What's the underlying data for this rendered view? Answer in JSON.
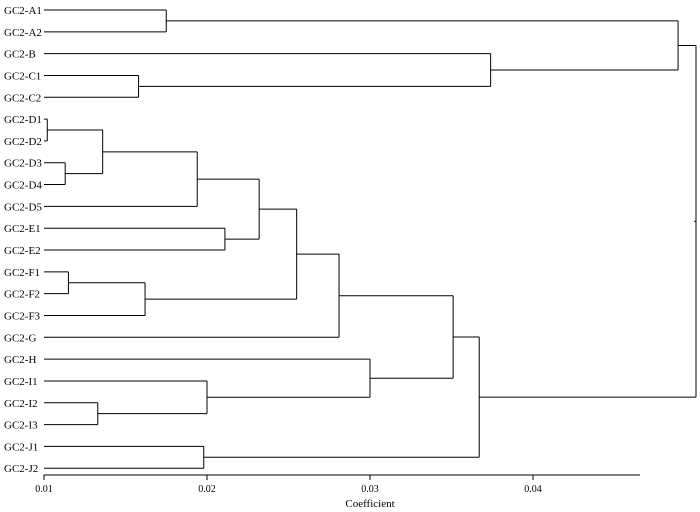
{
  "chart_data": {
    "type": "dendrogram",
    "xlabel": "Coefficient",
    "xlim": [
      0.01,
      0.0475
    ],
    "ticks": [
      0.01,
      0.02,
      0.03,
      0.04
    ],
    "tick_labels": [
      "0.01",
      "0.02",
      "0.03",
      "0.04"
    ],
    "leaves": [
      "GC2-A1",
      "GC2-A2",
      "GC2-B",
      "GC2-C1",
      "GC2-C2",
      "GC2-D1",
      "GC2-D2",
      "GC2-D3",
      "GC2-D4",
      "GC2-D5",
      "GC2-E1",
      "GC2-E2",
      "GC2-F1",
      "GC2-F2",
      "GC2-F3",
      "GC2-G",
      "GC2-H",
      "GC2-I1",
      "GC2-I2",
      "GC2-I3",
      "GC2-J1",
      "GC2-J2"
    ],
    "merges": [
      {
        "id": "n1",
        "children": [
          "GC2-A1",
          "GC2-A2"
        ],
        "height": 0.0175
      },
      {
        "id": "n2",
        "children": [
          "GC2-C1",
          "GC2-C2"
        ],
        "height": 0.0158
      },
      {
        "id": "n3",
        "children": [
          "GC2-B",
          "n2"
        ],
        "height": 0.0374
      },
      {
        "id": "n4",
        "children": [
          "n1",
          "n3"
        ],
        "height": 0.0489
      },
      {
        "id": "n5",
        "children": [
          "GC2-D1",
          "GC2-D2"
        ],
        "height": 0.0102
      },
      {
        "id": "n6",
        "children": [
          "GC2-D3",
          "GC2-D4"
        ],
        "height": 0.0113
      },
      {
        "id": "n7",
        "children": [
          "n5",
          "n6"
        ],
        "height": 0.0136
      },
      {
        "id": "n8",
        "children": [
          "n7",
          "GC2-D5"
        ],
        "height": 0.0194
      },
      {
        "id": "n9",
        "children": [
          "GC2-E1",
          "GC2-E2"
        ],
        "height": 0.0211
      },
      {
        "id": "n10",
        "children": [
          "n8",
          "n9"
        ],
        "height": 0.0232
      },
      {
        "id": "n11",
        "children": [
          "GC2-F1",
          "GC2-F2"
        ],
        "height": 0.0115
      },
      {
        "id": "n12",
        "children": [
          "n11",
          "GC2-F3"
        ],
        "height": 0.0162
      },
      {
        "id": "n13",
        "children": [
          "n10",
          "n12"
        ],
        "height": 0.0255
      },
      {
        "id": "n14",
        "children": [
          "n13",
          "GC2-G"
        ],
        "height": 0.0281
      },
      {
        "id": "n15",
        "children": [
          "GC2-I2",
          "GC2-I3"
        ],
        "height": 0.0133
      },
      {
        "id": "n16",
        "children": [
          "GC2-I1",
          "n15"
        ],
        "height": 0.02
      },
      {
        "id": "n17",
        "children": [
          "GC2-H",
          "n16"
        ],
        "height": 0.03
      },
      {
        "id": "n18",
        "children": [
          "n14",
          "n17"
        ],
        "height": 0.0351
      },
      {
        "id": "n19",
        "children": [
          "GC2-J1",
          "GC2-J2"
        ],
        "height": 0.0198
      },
      {
        "id": "n20",
        "children": [
          "n18",
          "n19"
        ],
        "height": 0.0367
      },
      {
        "id": "n21",
        "children": [
          "n4",
          "n20"
        ],
        "height": 0.05
      }
    ]
  }
}
